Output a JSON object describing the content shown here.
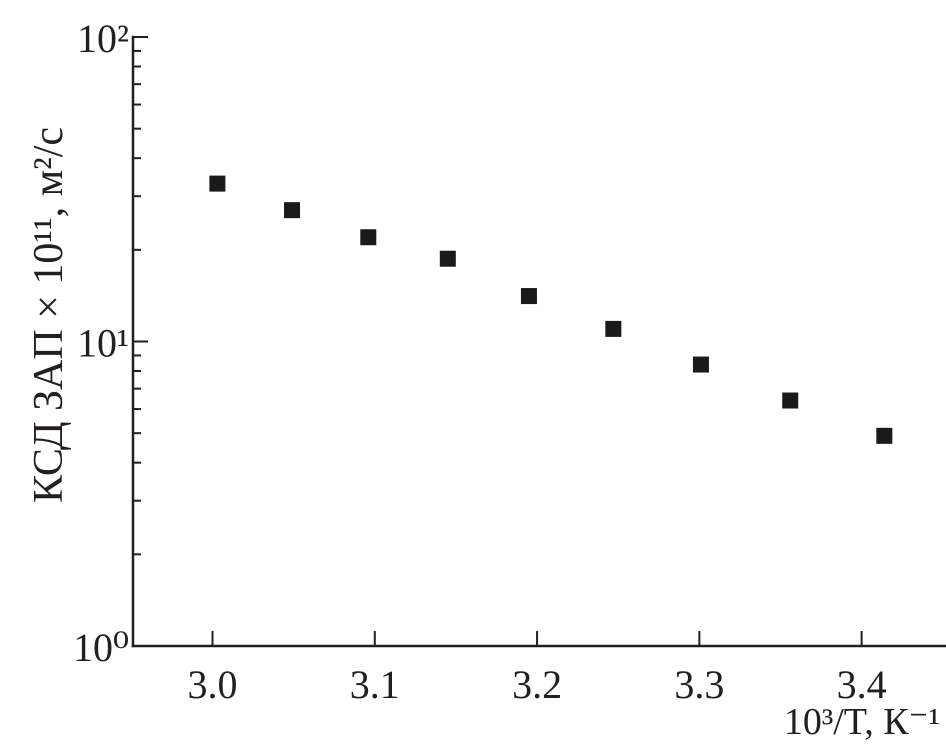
{
  "chart_data": {
    "type": "scatter",
    "x": [
      3.003,
      3.049,
      3.096,
      3.145,
      3.195,
      3.247,
      3.301,
      3.356,
      3.414
    ],
    "y": [
      33,
      27,
      22,
      18.7,
      14.1,
      11.0,
      8.4,
      6.4,
      4.9
    ],
    "xlabel": "10³/T, К⁻¹",
    "ylabel": "КСД ЗАП × 10¹¹, м²/с",
    "xlim": [
      2.951,
      3.452
    ],
    "ylim": [
      1,
      100
    ],
    "yscale": "log",
    "x_ticks": [
      3.0,
      3.1,
      3.2,
      3.3,
      3.4
    ],
    "x_tick_labels": [
      "3.0",
      "3.1",
      "3.2",
      "3.3",
      "3.4"
    ],
    "y_ticks": [
      1,
      10,
      100
    ],
    "y_tick_labels": [
      "10⁰",
      "10¹",
      "10²"
    ],
    "y_minor_ticks": true,
    "grid": false,
    "legend": "none",
    "marker": "square",
    "colors": {
      "marker": "#1a1a1a",
      "axis": "#231f20"
    }
  }
}
